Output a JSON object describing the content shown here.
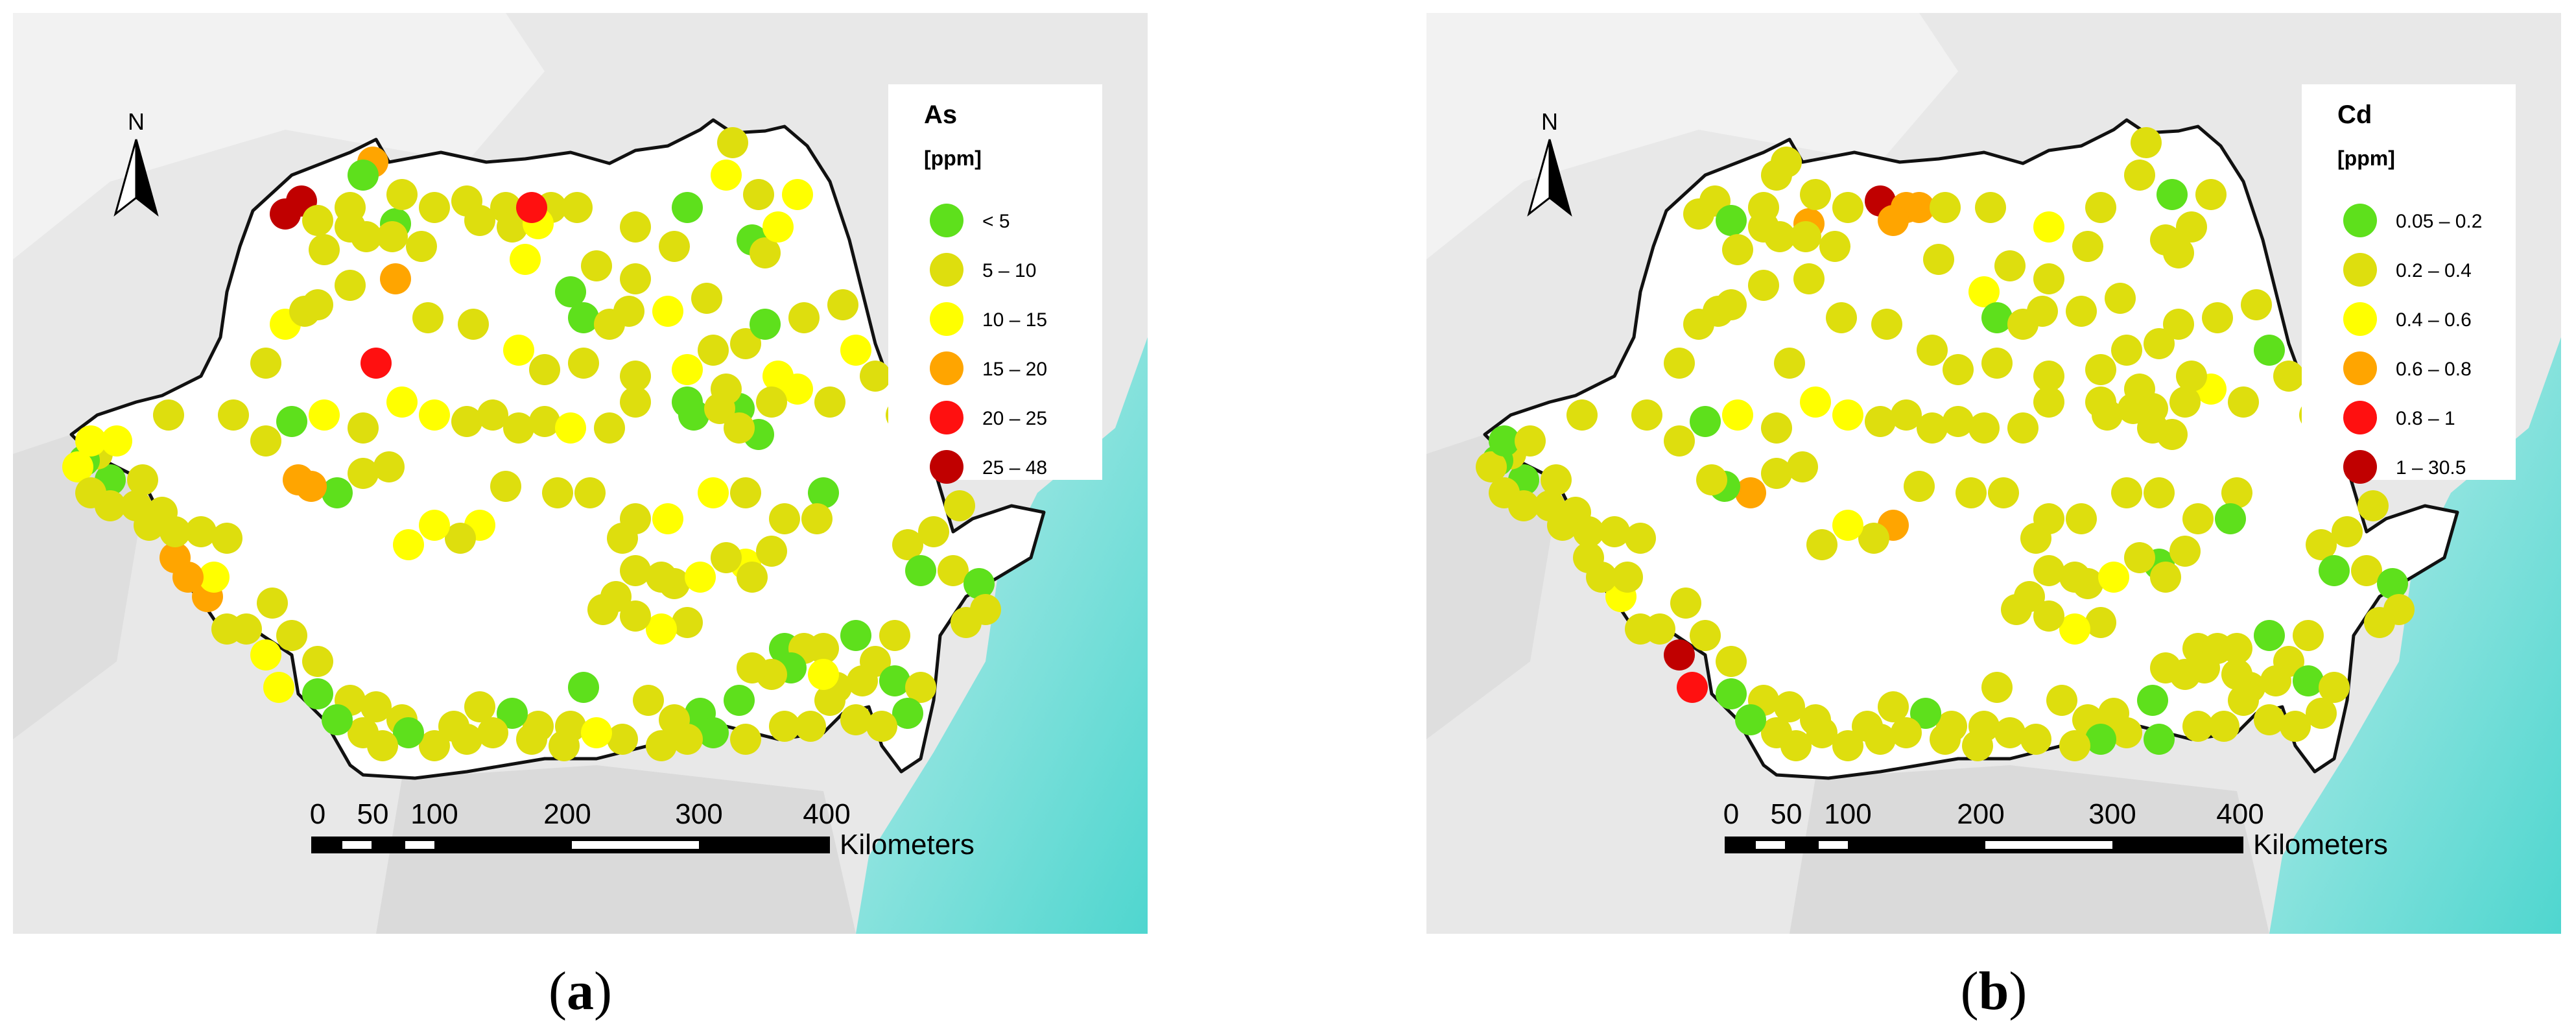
{
  "figure": {
    "panels": [
      {
        "id": "a",
        "caption": "a",
        "north_label": "N",
        "legend": {
          "title": "As",
          "unit": "[ppm]",
          "classes": [
            {
              "label": "< 5",
              "color": "#5ee01c"
            },
            {
              "label": "5 – 10",
              "color": "#dede0e"
            },
            {
              "label": "10 – 15",
              "color": "#ffff00"
            },
            {
              "label": "15 – 20",
              "color": "#ffa500"
            },
            {
              "label": "20 – 25",
              "color": "#ff1010"
            },
            {
              "label": "25 – 48",
              "color": "#c00000"
            }
          ]
        },
        "scale_bar": {
          "ticks": [
            "0",
            "50",
            "100",
            "200",
            "300",
            "400"
          ],
          "unit": "Kilometers"
        }
      },
      {
        "id": "b",
        "caption": "b",
        "north_label": "N",
        "legend": {
          "title": "Cd",
          "unit": "[ppm]",
          "classes": [
            {
              "label": "0.05 – 0.2",
              "color": "#5ee01c"
            },
            {
              "label": "0.2 – 0.4",
              "color": "#dede0e"
            },
            {
              "label": "0.4 – 0.6",
              "color": "#ffff00"
            },
            {
              "label": "0.6 – 0.8",
              "color": "#ffa500"
            },
            {
              "label": "0.8 – 1",
              "color": "#ff1010"
            },
            {
              "label": "1 – 30.5",
              "color": "#c00000"
            }
          ]
        },
        "scale_bar": {
          "ticks": [
            "0",
            "50",
            "100",
            "200",
            "300",
            "400"
          ],
          "unit": "Kilometers"
        }
      }
    ]
  },
  "colors": {
    "sea": "#4fd6cf",
    "relief": "#e6e6e6",
    "country_fill": "#ffffff",
    "border": "#111111"
  }
}
